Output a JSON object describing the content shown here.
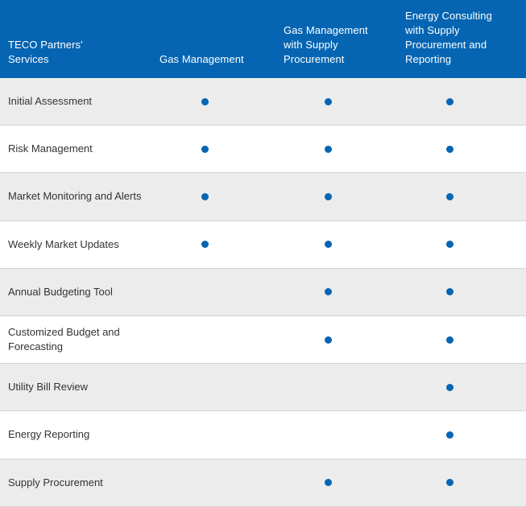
{
  "colors": {
    "header_bg": "#0565b2",
    "dot": "#0565b2",
    "shaded_row": "#ececec",
    "text": "#333333"
  },
  "header": {
    "services": "TECO Partners'\nServices",
    "col1": "Gas Management",
    "col2": "Gas Management\nwith Supply\nProcurement",
    "col3": "Energy Consulting\nwith Supply\nProcurement and\nReporting"
  },
  "rows": [
    {
      "label": "Initial Assessment",
      "gas_management": true,
      "gas_management_supply": true,
      "energy_consulting": true
    },
    {
      "label": "Risk Management",
      "gas_management": true,
      "gas_management_supply": true,
      "energy_consulting": true
    },
    {
      "label": "Market Monitoring and Alerts",
      "gas_management": true,
      "gas_management_supply": true,
      "energy_consulting": true
    },
    {
      "label": "Weekly Market Updates",
      "gas_management": true,
      "gas_management_supply": true,
      "energy_consulting": true
    },
    {
      "label": "Annual Budgeting Tool",
      "gas_management": false,
      "gas_management_supply": true,
      "energy_consulting": true
    },
    {
      "label": "Customized Budget and\nForecasting",
      "gas_management": false,
      "gas_management_supply": true,
      "energy_consulting": true
    },
    {
      "label": "Utility Bill Review",
      "gas_management": false,
      "gas_management_supply": false,
      "energy_consulting": true
    },
    {
      "label": "Energy Reporting",
      "gas_management": false,
      "gas_management_supply": false,
      "energy_consulting": true
    },
    {
      "label": "Supply Procurement",
      "gas_management": false,
      "gas_management_supply": true,
      "energy_consulting": true
    }
  ]
}
